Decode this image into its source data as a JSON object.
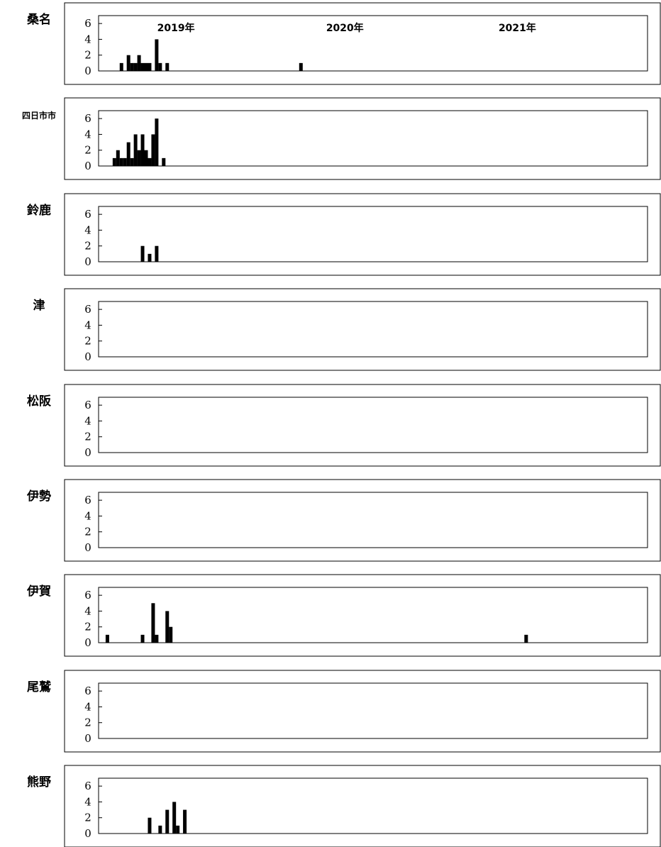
{
  "chart_data": {
    "type": "bar",
    "stacked": true,
    "x_unit": "week-of-period",
    "xlim": [
      0,
      156
    ],
    "ylim": [
      0,
      7
    ],
    "yticks": [
      0,
      2,
      4,
      6
    ],
    "year_labels": [
      {
        "text": "2019年",
        "x": 22
      },
      {
        "text": "2020年",
        "x": 70
      },
      {
        "text": "2021年",
        "x": 119
      }
    ],
    "panels": [
      {
        "label": "桑名",
        "bars": [
          {
            "x": 6,
            "value": 1
          },
          {
            "x": 8,
            "value": 2
          },
          {
            "x": 9,
            "value": 1
          },
          {
            "x": 10,
            "value": 1
          },
          {
            "x": 11,
            "value": 2
          },
          {
            "x": 12,
            "value": 1
          },
          {
            "x": 13,
            "value": 1
          },
          {
            "x": 14,
            "value": 1
          },
          {
            "x": 16,
            "value": 4
          },
          {
            "x": 17,
            "value": 1
          },
          {
            "x": 19,
            "value": 1
          },
          {
            "x": 57,
            "value": 1
          }
        ]
      },
      {
        "label": "四日市市",
        "bars": [
          {
            "x": 4,
            "value": 1
          },
          {
            "x": 5,
            "value": 2
          },
          {
            "x": 6,
            "value": 1
          },
          {
            "x": 7,
            "value": 1
          },
          {
            "x": 8,
            "value": 3
          },
          {
            "x": 9,
            "value": 1
          },
          {
            "x": 10,
            "value": 4
          },
          {
            "x": 11,
            "value": 2
          },
          {
            "x": 12,
            "value": 4
          },
          {
            "x": 13,
            "value": 2
          },
          {
            "x": 14,
            "value": 1
          },
          {
            "x": 15,
            "value": 4
          },
          {
            "x": 16,
            "value": 6
          },
          {
            "x": 18,
            "value": 1
          }
        ]
      },
      {
        "label": "鈴鹿",
        "bars": [
          {
            "x": 12,
            "value": 2
          },
          {
            "x": 14,
            "value": 1
          },
          {
            "x": 16,
            "value": 2
          }
        ]
      },
      {
        "label": "津",
        "bars": []
      },
      {
        "label": "松阪",
        "bars": []
      },
      {
        "label": "伊勢",
        "bars": []
      },
      {
        "label": "伊賀",
        "bars": [
          {
            "x": 2,
            "value": 1
          },
          {
            "x": 12,
            "value": 1
          },
          {
            "x": 15,
            "value": 5
          },
          {
            "x": 16,
            "value": 1
          },
          {
            "x": 19,
            "value": 4
          },
          {
            "x": 20,
            "value": 2
          },
          {
            "x": 121,
            "value": 1
          }
        ]
      },
      {
        "label": "尾鷲",
        "bars": []
      },
      {
        "label": "熊野",
        "bars": [
          {
            "x": 14,
            "value": 2
          },
          {
            "x": 17,
            "value": 1
          },
          {
            "x": 19,
            "value": 3
          },
          {
            "x": 21,
            "value": 4
          },
          {
            "x": 22,
            "value": 1
          },
          {
            "x": 24,
            "value": 3
          }
        ]
      }
    ]
  }
}
